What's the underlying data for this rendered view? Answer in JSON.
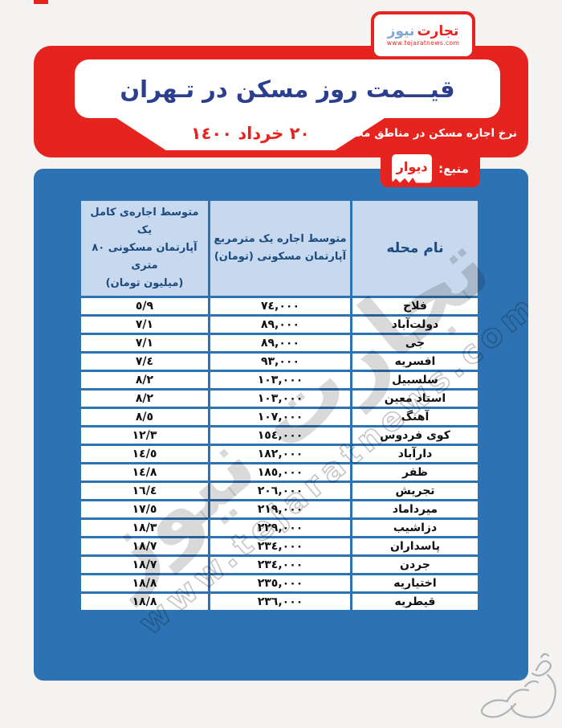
{
  "logo": {
    "word_red": "تجارت",
    "word_blue": "نیوز",
    "url": "www.tejaratnews.com"
  },
  "header": {
    "title": "قیـــمت روز مسکن در تـهران",
    "date": "٢٠ خرداد ١٤٠٠",
    "subtitle": "نرخ اجاره مسکن در مناطق مختلف تهران"
  },
  "source": {
    "label": "منبع:",
    "name": "دیوار"
  },
  "table": {
    "columns": [
      {
        "lines": [
          "نام محله"
        ]
      },
      {
        "lines": [
          "متوسط اجاره یک مترمربع",
          "آپارتمان مسکونی (تومان)"
        ]
      },
      {
        "lines": [
          "متوسط اجاره‌ی کامل یک",
          "آپارتمان مسکونی ٨٠ متری",
          "(میلیون تومان)"
        ]
      }
    ],
    "rows": [
      [
        "فلاح",
        "٧٤,٠٠٠",
        "٥/٩"
      ],
      [
        "دولت‌آباد",
        "٨٩,٠٠٠",
        "٧/١"
      ],
      [
        "جی",
        "٨٩,٠٠٠",
        "٧/١"
      ],
      [
        "افسریه",
        "٩٣,٠٠٠",
        "٧/٤"
      ],
      [
        "سلسبیل",
        "١٠٣,٠٠٠",
        "٨/٢"
      ],
      [
        "استاد معین",
        "١٠٣,٠٠٠",
        "٨/٢"
      ],
      [
        "آهنگ",
        "١٠٧,٠٠٠",
        "٨/٥"
      ],
      [
        "کوی فردوس",
        "١٥٤,٠٠٠",
        "١٢/٣"
      ],
      [
        "دارآباد",
        "١٨٢,٠٠٠",
        "١٤/٥"
      ],
      [
        "ظفر",
        "١٨٥,٠٠٠",
        "١٤/٨"
      ],
      [
        "تجریش",
        "٢٠٦,٠٠٠",
        "١٦/٤"
      ],
      [
        "میرداماد",
        "٢١٩,٠٠٠",
        "١٧/٥"
      ],
      [
        "دزاشیب",
        "٢٢٩,٠٠٠",
        "١٨/٣"
      ],
      [
        "پاسداران",
        "٢٣٤,٠٠٠",
        "١٨/٧"
      ],
      [
        "جردن",
        "٢٣٤,٠٠٠",
        "١٨/٧"
      ],
      [
        "اختیاریه",
        "٢٣٥,٠٠٠",
        "١٨/٨"
      ],
      [
        "قیطریه",
        "٢٣٦,٠٠٠",
        "١٨/٨"
      ]
    ]
  },
  "watermark": {
    "text": "تجارت نیوز",
    "url": "www.tejaratnews.com"
  },
  "colors": {
    "red": "#e6241f",
    "blue_card": "#2d72b2",
    "header_cell_bg": "#c6d9ee",
    "header_cell_text": "#1c4a7e",
    "title_blue": "#2c3f8f",
    "logo_light_blue": "#7fa8d4"
  }
}
